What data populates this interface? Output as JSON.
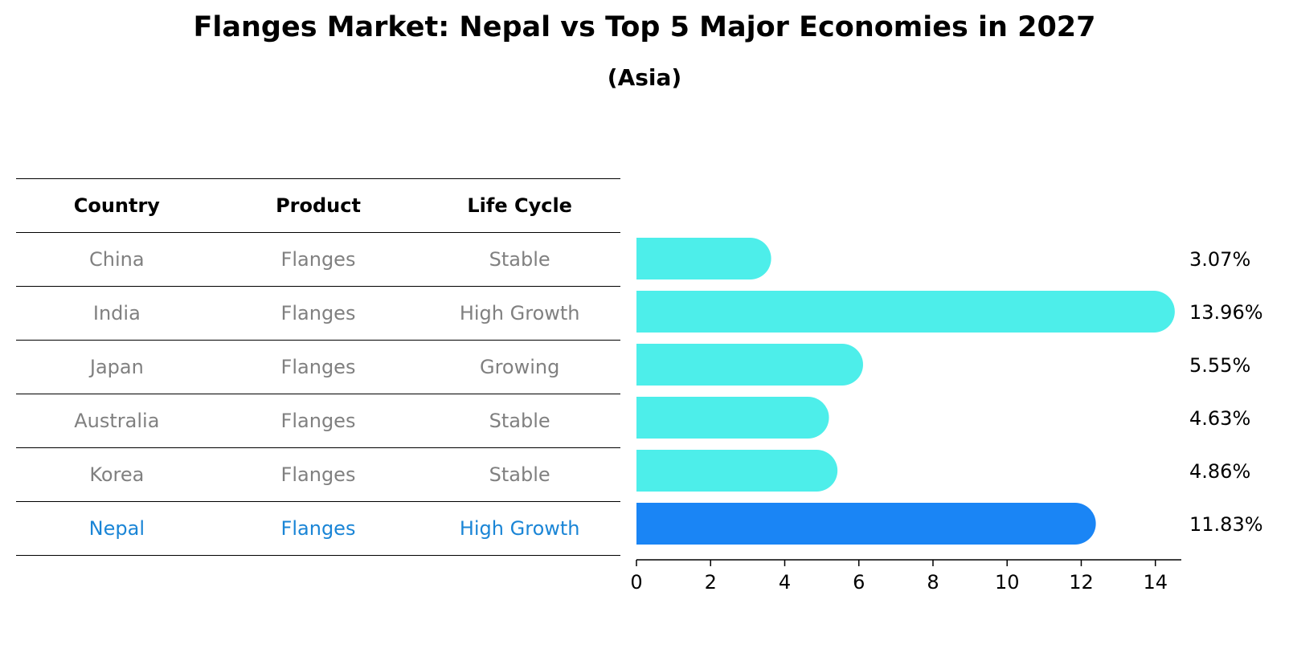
{
  "header": {
    "title": "Flanges Market: Nepal vs Top 5 Major Economies in 2027",
    "subtitle": "(Asia)"
  },
  "table": {
    "columns": [
      "Country",
      "Product",
      "Life Cycle"
    ],
    "rows": [
      {
        "country": "China",
        "product": "Flanges",
        "life_cycle": "Stable"
      },
      {
        "country": "India",
        "product": "Flanges",
        "life_cycle": "High Growth"
      },
      {
        "country": "Japan",
        "product": "Flanges",
        "life_cycle": "Growing"
      },
      {
        "country": "Australia",
        "product": "Flanges",
        "life_cycle": "Stable"
      },
      {
        "country": "Korea",
        "product": "Flanges",
        "life_cycle": "Stable"
      },
      {
        "country": "Nepal",
        "product": "Flanges",
        "life_cycle": "High Growth"
      }
    ],
    "highlight_row": "Nepal"
  },
  "chart_data": {
    "type": "bar",
    "orientation": "horizontal",
    "categories": [
      "China",
      "India",
      "Japan",
      "Australia",
      "Korea",
      "Nepal"
    ],
    "values": [
      3.07,
      13.96,
      5.55,
      4.63,
      4.86,
      11.83
    ],
    "data_labels": [
      "3.07%",
      "13.96%",
      "5.55%",
      "4.63%",
      "4.86%",
      "11.83%"
    ],
    "xlim": [
      0,
      14.7
    ],
    "xticks": [
      0,
      2,
      4,
      6,
      8,
      10,
      12,
      14
    ],
    "grid": false,
    "colors": {
      "default": "#4deeea",
      "highlight": "#1a85f5"
    },
    "highlight_category": "Nepal"
  }
}
